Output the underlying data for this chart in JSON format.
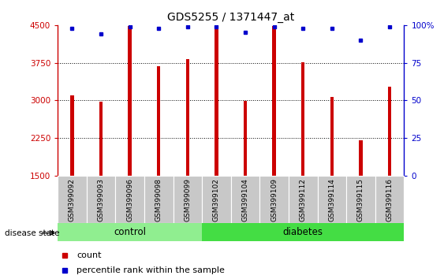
{
  "title": "GDS5255 / 1371447_at",
  "samples": [
    "GSM399092",
    "GSM399093",
    "GSM399096",
    "GSM399098",
    "GSM399099",
    "GSM399102",
    "GSM399104",
    "GSM399109",
    "GSM399112",
    "GSM399114",
    "GSM399115",
    "GSM399116"
  ],
  "counts": [
    3100,
    2970,
    4480,
    3680,
    3820,
    4470,
    2990,
    4480,
    3760,
    3070,
    2200,
    3280
  ],
  "percentile_ranks": [
    98,
    94,
    99,
    98,
    99,
    99,
    95,
    99,
    98,
    98,
    90,
    99
  ],
  "groups": [
    "control",
    "control",
    "control",
    "control",
    "control",
    "diabetes",
    "diabetes",
    "diabetes",
    "diabetes",
    "diabetes",
    "diabetes",
    "diabetes"
  ],
  "ymin": 1500,
  "ymax": 4500,
  "yticks": [
    1500,
    2250,
    3000,
    3750,
    4500
  ],
  "right_yticks": [
    0,
    25,
    50,
    75,
    100
  ],
  "bar_color": "#cc0000",
  "dot_color": "#0000cc",
  "control_color": "#90ee90",
  "diabetes_color": "#44dd44",
  "label_bg_color": "#c8c8c8",
  "legend_count_color": "#cc0000",
  "legend_pct_color": "#0000cc"
}
